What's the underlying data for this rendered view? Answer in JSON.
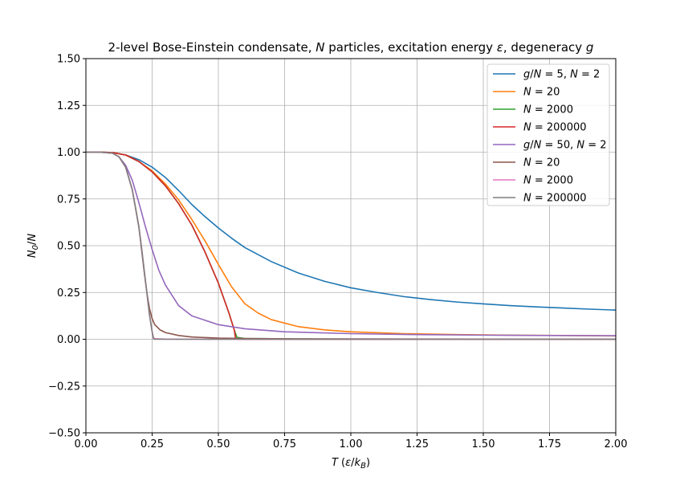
{
  "chart_data": {
    "type": "line",
    "title": "2-level Bose-Einstein condensate, N particles, excitation energy ε, degeneracy g",
    "xlabel": "T (ε/k_B)",
    "ylabel": "N_0/N",
    "xlim": [
      0,
      2
    ],
    "ylim": [
      -0.5,
      1.5
    ],
    "xticks": [
      0,
      0.25,
      0.5,
      0.75,
      1.0,
      1.25,
      1.5,
      1.75,
      2.0
    ],
    "xtick_labels": [
      "0.00",
      "0.25",
      "0.50",
      "0.75",
      "1.00",
      "1.25",
      "1.50",
      "1.75",
      "2.00"
    ],
    "yticks": [
      -0.5,
      -0.25,
      0,
      0.25,
      0.5,
      0.75,
      1.0,
      1.25,
      1.5
    ],
    "ytick_labels": [
      "−0.50",
      "−0.25",
      "0.00",
      "0.25",
      "0.50",
      "0.75",
      "1.00",
      "1.25",
      "1.50"
    ],
    "grid": true,
    "legend_position": "top-right",
    "series": [
      {
        "name": "g/N = 5, N = 2",
        "color": "#1f77b4",
        "x": [
          0,
          0.05,
          0.1,
          0.15,
          0.2,
          0.25,
          0.3,
          0.35,
          0.4,
          0.45,
          0.5,
          0.55,
          0.6,
          0.7,
          0.8,
          0.9,
          1.0,
          1.1,
          1.2,
          1.3,
          1.4,
          1.5,
          1.6,
          1.7,
          1.8,
          1.9,
          2.0
        ],
        "y": [
          1.0,
          1.0,
          0.998,
          0.985,
          0.96,
          0.92,
          0.865,
          0.795,
          0.72,
          0.655,
          0.595,
          0.54,
          0.49,
          0.415,
          0.355,
          0.31,
          0.275,
          0.25,
          0.228,
          0.212,
          0.199,
          0.189,
          0.18,
          0.173,
          0.167,
          0.161,
          0.156
        ]
      },
      {
        "name": "N = 20",
        "color": "#ff7f0e",
        "x": [
          0,
          0.05,
          0.1,
          0.15,
          0.2,
          0.25,
          0.3,
          0.35,
          0.4,
          0.45,
          0.5,
          0.55,
          0.6,
          0.65,
          0.7,
          0.8,
          0.9,
          1.0,
          1.2,
          1.4,
          1.6,
          1.8,
          2.0
        ],
        "y": [
          1.0,
          1.0,
          0.998,
          0.985,
          0.95,
          0.9,
          0.83,
          0.745,
          0.64,
          0.525,
          0.4,
          0.28,
          0.19,
          0.14,
          0.105,
          0.068,
          0.05,
          0.04,
          0.03,
          0.025,
          0.022,
          0.02,
          0.018
        ]
      },
      {
        "name": "N = 2000",
        "color": "#2ca02c",
        "x": [
          0,
          0.05,
          0.1,
          0.15,
          0.2,
          0.25,
          0.3,
          0.35,
          0.4,
          0.45,
          0.5,
          0.54,
          0.56,
          0.57,
          0.6,
          0.8,
          1.0,
          1.5,
          2.0
        ],
        "y": [
          1.0,
          1.0,
          0.998,
          0.985,
          0.95,
          0.895,
          0.82,
          0.725,
          0.61,
          0.465,
          0.3,
          0.14,
          0.05,
          0.01,
          0.004,
          0.002,
          0.001,
          0.001,
          0.001
        ]
      },
      {
        "name": "N = 200000",
        "color": "#d62728",
        "x": [
          0,
          0.05,
          0.1,
          0.15,
          0.2,
          0.25,
          0.3,
          0.35,
          0.4,
          0.45,
          0.5,
          0.54,
          0.56,
          0.565,
          0.6,
          0.8,
          1.0,
          1.5,
          2.0
        ],
        "y": [
          1.0,
          1.0,
          0.998,
          0.985,
          0.95,
          0.895,
          0.82,
          0.725,
          0.61,
          0.465,
          0.3,
          0.14,
          0.05,
          0.002,
          0.0,
          0.0,
          0.0,
          0.0,
          0.0
        ]
      },
      {
        "name": "g/N = 50, N = 2",
        "color": "#9467bd",
        "x": [
          0,
          0.05,
          0.1,
          0.125,
          0.15,
          0.175,
          0.2,
          0.225,
          0.25,
          0.275,
          0.3,
          0.35,
          0.4,
          0.5,
          0.6,
          0.75,
          1.0,
          1.25,
          1.5,
          1.75,
          2.0
        ],
        "y": [
          1.0,
          1.0,
          0.995,
          0.975,
          0.93,
          0.85,
          0.73,
          0.6,
          0.48,
          0.37,
          0.29,
          0.18,
          0.125,
          0.078,
          0.056,
          0.04,
          0.03,
          0.025,
          0.022,
          0.02,
          0.019
        ]
      },
      {
        "name": "N = 20",
        "color": "#8c564b",
        "x": [
          0,
          0.05,
          0.1,
          0.125,
          0.15,
          0.175,
          0.2,
          0.21,
          0.22,
          0.23,
          0.24,
          0.25,
          0.26,
          0.28,
          0.3,
          0.35,
          0.4,
          0.5,
          0.6,
          0.8,
          1.0,
          1.5,
          2.0
        ],
        "y": [
          1.0,
          1.0,
          0.995,
          0.975,
          0.92,
          0.8,
          0.6,
          0.48,
          0.36,
          0.25,
          0.165,
          0.11,
          0.078,
          0.05,
          0.036,
          0.02,
          0.012,
          0.006,
          0.004,
          0.002,
          0.002,
          0.001,
          0.001
        ]
      },
      {
        "name": "N = 2000",
        "color": "#e377c2",
        "x": [
          0,
          0.05,
          0.1,
          0.125,
          0.15,
          0.175,
          0.2,
          0.21,
          0.22,
          0.23,
          0.24,
          0.25,
          0.255,
          0.26,
          0.3,
          0.5,
          1.0,
          2.0
        ],
        "y": [
          1.0,
          1.0,
          0.995,
          0.975,
          0.92,
          0.8,
          0.6,
          0.49,
          0.37,
          0.25,
          0.13,
          0.04,
          0.008,
          0.003,
          0.001,
          0.0,
          0.0,
          0.0
        ]
      },
      {
        "name": "N = 200000",
        "color": "#7f7f7f",
        "x": [
          0,
          0.05,
          0.1,
          0.125,
          0.15,
          0.175,
          0.2,
          0.21,
          0.22,
          0.23,
          0.24,
          0.25,
          0.255,
          0.26,
          0.3,
          0.5,
          1.0,
          2.0
        ],
        "y": [
          1.0,
          1.0,
          0.995,
          0.975,
          0.92,
          0.8,
          0.6,
          0.49,
          0.37,
          0.25,
          0.13,
          0.04,
          0.003,
          0.0,
          0.0,
          0.0,
          0.0,
          0.0
        ]
      }
    ]
  }
}
